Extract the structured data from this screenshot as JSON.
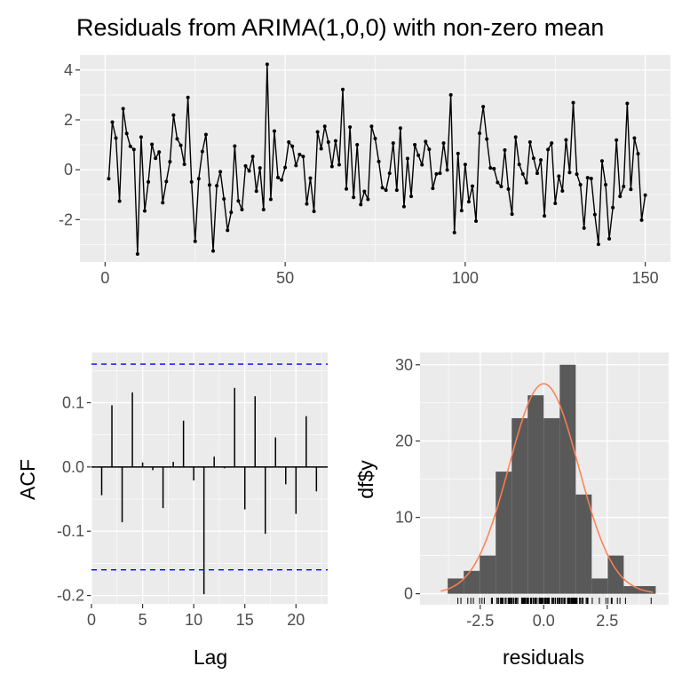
{
  "title": "Residuals from ARIMA(1,0,0) with non-zero mean",
  "chart_data": [
    {
      "type": "line",
      "name": "residuals-time-series",
      "title": "Residuals from ARIMA(1,0,0) with non-zero mean",
      "xlabel": "",
      "ylabel": "",
      "xlim": [
        -7,
        157
      ],
      "ylim": [
        -3.7,
        4.6
      ],
      "xticks": [
        "0",
        "50",
        "100",
        "150"
      ],
      "yticks": [
        "-2",
        "0",
        "2",
        "4"
      ],
      "grid": true,
      "values": [
        -0.36,
        1.91,
        1.27,
        -1.26,
        2.45,
        1.45,
        0.94,
        0.81,
        -3.38,
        1.31,
        -1.65,
        -0.49,
        1.02,
        0.46,
        0.71,
        -1.32,
        -0.47,
        0.32,
        2.19,
        1.24,
        0.98,
        0.22,
        2.9,
        -0.49,
        -2.87,
        -0.36,
        0.73,
        1.41,
        -0.61,
        -3.26,
        -0.64,
        -0.08,
        -1.17,
        -2.43,
        -1.71,
        0.95,
        -1.25,
        -1.6,
        0.15,
        -0.05,
        0.53,
        -0.86,
        0.07,
        -1.6,
        4.23,
        -1.19,
        1.55,
        -0.31,
        -0.41,
        0.09,
        1.11,
        0.94,
        0.17,
        0.61,
        0.53,
        -1.37,
        -0.34,
        -1.67,
        1.52,
        0.84,
        1.74,
        1.11,
        0.13,
        1.16,
        0.2,
        3.22,
        -0.77,
        1.71,
        -1.11,
        1.0,
        -1.4,
        -0.87,
        -1.19,
        1.74,
        1.25,
        0.33,
        -0.72,
        -0.82,
        -0.14,
        1.07,
        -0.82,
        1.67,
        -1.48,
        0.45,
        -1.07,
        1.0,
        0.58,
        0.2,
        1.13,
        0.82,
        -0.75,
        -0.17,
        -0.14,
        1.07,
        -0.01,
        3.0,
        -2.52,
        0.65,
        -1.64,
        0.21,
        -1.28,
        -0.66,
        -2.06,
        1.46,
        2.53,
        1.23,
        0.07,
        0.04,
        -0.51,
        -0.67,
        0.79,
        -0.78,
        -1.78,
        1.31,
        0.21,
        -0.17,
        -0.52,
        1.11,
        0.46,
        -0.14,
        0.39,
        -1.85,
        0.81,
        1.07,
        -1.35,
        -0.26,
        -0.85,
        1.2,
        -0.11,
        2.69,
        -0.18,
        -0.6,
        -2.34,
        -0.32,
        -0.35,
        -1.8,
        -2.99,
        0.35,
        -0.6,
        -2.77,
        -1.52,
        1.19,
        -1.07,
        -0.67,
        2.66,
        -0.79,
        1.27,
        0.64,
        -2.02,
        -1.02
      ]
    },
    {
      "type": "bar",
      "name": "acf",
      "xlabel": "Lag",
      "ylabel": "ACF",
      "xlim": [
        0,
        23.1
      ],
      "ylim": [
        -0.213,
        0.178
      ],
      "xticks": [
        "0",
        "5",
        "10",
        "15",
        "20"
      ],
      "yticks": [
        "-0.2",
        "-0.1",
        "0.0",
        "0.1"
      ],
      "ci": 0.16,
      "ci_color": "#0000ff",
      "lags": [
        1,
        2,
        3,
        4,
        5,
        6,
        7,
        8,
        9,
        10,
        11,
        12,
        13,
        14,
        15,
        16,
        17,
        18,
        19,
        20,
        21,
        22
      ],
      "values": [
        -0.044,
        0.096,
        -0.086,
        0.116,
        0.007,
        -0.005,
        -0.064,
        0.008,
        0.072,
        -0.021,
        -0.198,
        0.016,
        -0.002,
        0.123,
        -0.066,
        0.11,
        -0.104,
        0.046,
        -0.027,
        -0.073,
        0.079,
        -0.038
      ]
    },
    {
      "type": "bar",
      "name": "histogram",
      "xlabel": "residuals",
      "ylabel": "df$y",
      "xlim": [
        -4.87,
        4.92
      ],
      "ylim": [
        -1.44,
        31.6
      ],
      "xticks": [
        "-2.5",
        "0.0",
        "2.5"
      ],
      "yticks": [
        "0",
        "10",
        "20",
        "30"
      ],
      "bin_start": -3.78,
      "bin_width": 0.63,
      "counts": [
        2,
        3,
        5,
        16,
        23,
        26,
        23,
        30,
        13,
        2,
        5,
        1,
        1
      ],
      "density_curve": {
        "mean": 0,
        "sd": 1.37,
        "color": "#ff7f50"
      },
      "bar_color": "#595959"
    }
  ]
}
